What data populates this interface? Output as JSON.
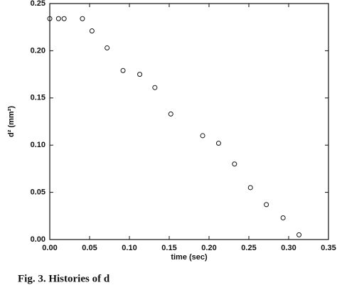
{
  "chart_data": {
    "type": "scatter",
    "x_label": "time (sec)",
    "y_label": "d² (mm²)",
    "caption": "Fig. 3. Histories of d",
    "xlim": [
      0,
      0.35
    ],
    "ylim": [
      0,
      0.25
    ],
    "xticks": [
      {
        "value": 0,
        "label": "0.00"
      },
      0.05,
      {
        "value": 0.1,
        "label": "0.10"
      },
      0.15,
      {
        "value": 0.2,
        "label": "0.20"
      },
      0.25,
      {
        "value": 0.3,
        "label": "0.30"
      },
      0.35
    ],
    "yticks": [
      {
        "value": 0,
        "label": "0.00"
      },
      0.05,
      {
        "value": 0.1,
        "label": "0.10"
      },
      0.15,
      {
        "value": 0.2,
        "label": "0.20"
      },
      0.25
    ],
    "x": [
      0.0,
      0.011,
      0.018,
      0.041,
      0.053,
      0.072,
      0.092,
      0.113,
      0.132,
      0.152,
      0.192,
      0.212,
      0.232,
      0.252,
      0.272,
      0.293,
      0.313
    ],
    "values": [
      0.234,
      0.234,
      0.234,
      0.234,
      0.221,
      0.203,
      0.179,
      0.175,
      0.161,
      0.133,
      0.11,
      0.102,
      0.08,
      0.055,
      0.037,
      0.023,
      0.005
    ],
    "color": "#111111"
  }
}
